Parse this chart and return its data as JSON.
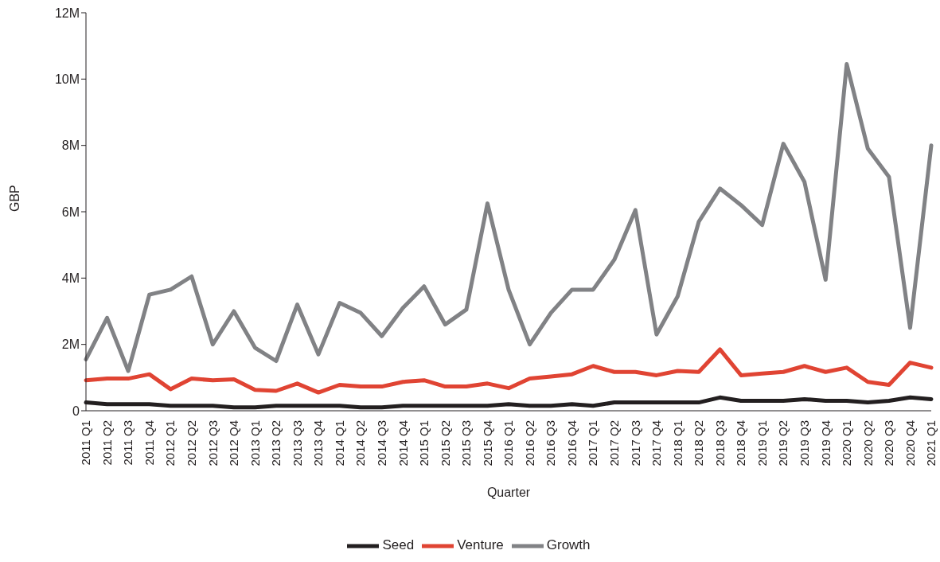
{
  "chart_data": {
    "type": "line",
    "xlabel": "Quarter",
    "ylabel": "GBP",
    "categories": [
      "2011 Q1",
      "2011 Q2",
      "2011 Q3",
      "2011 Q4",
      "2012 Q1",
      "2012 Q2",
      "2012 Q3",
      "2012 Q4",
      "2013 Q1",
      "2013 Q2",
      "2013 Q3",
      "2013 Q4",
      "2014 Q1",
      "2014 Q2",
      "2014 Q3",
      "2014 Q4",
      "2015 Q1",
      "2015 Q2",
      "2015 Q3",
      "2015 Q4",
      "2016 Q1",
      "2016 Q2",
      "2016 Q3",
      "2016 Q4",
      "2017 Q1",
      "2017 Q2",
      "2017 Q3",
      "2017 Q4",
      "2018 Q1",
      "2018 Q2",
      "2018 Q3",
      "2018 Q4",
      "2019 Q1",
      "2019 Q2",
      "2019 Q3",
      "2019 Q4",
      "2020 Q1",
      "2020 Q2",
      "2020 Q3",
      "2020 Q4",
      "2021 Q1"
    ],
    "series": [
      {
        "name": "Seed",
        "color": "#231f20",
        "values": [
          250000,
          200000,
          200000,
          200000,
          150000,
          150000,
          150000,
          100000,
          100000,
          150000,
          150000,
          150000,
          150000,
          100000,
          100000,
          150000,
          150000,
          150000,
          150000,
          150000,
          200000,
          150000,
          150000,
          200000,
          150000,
          250000,
          250000,
          250000,
          250000,
          250000,
          400000,
          300000,
          300000,
          300000,
          350000,
          300000,
          300000,
          250000,
          300000,
          400000,
          350000
        ]
      },
      {
        "name": "Venture",
        "color": "#e04433",
        "values": [
          920000,
          970000,
          970000,
          1100000,
          650000,
          970000,
          920000,
          950000,
          630000,
          600000,
          820000,
          550000,
          780000,
          730000,
          730000,
          870000,
          920000,
          730000,
          730000,
          820000,
          680000,
          970000,
          1030000,
          1100000,
          1350000,
          1170000,
          1170000,
          1070000,
          1200000,
          1170000,
          1850000,
          1070000,
          1120000,
          1170000,
          1350000,
          1170000,
          1300000,
          870000,
          780000,
          1450000,
          1300000
        ]
      },
      {
        "name": "Growth",
        "color": "#818285",
        "values": [
          1550000,
          2800000,
          1200000,
          3500000,
          3650000,
          4050000,
          2000000,
          3000000,
          1900000,
          1500000,
          3200000,
          1700000,
          3250000,
          2950000,
          2250000,
          3100000,
          3750000,
          2600000,
          3050000,
          6250000,
          3650000,
          2000000,
          2950000,
          3650000,
          3650000,
          4550000,
          6050000,
          2300000,
          3450000,
          5700000,
          6700000,
          6200000,
          5600000,
          8050000,
          6900000,
          3950000,
          10450000,
          7900000,
          7050000,
          2500000,
          8000000
        ]
      }
    ],
    "ylim": [
      0,
      12000000
    ],
    "yticks": [
      0,
      {
        "value": 2000000,
        "label": "2M"
      },
      {
        "value": 4000000,
        "label": "4M"
      },
      {
        "value": 6000000,
        "label": "6M"
      },
      {
        "value": 8000000,
        "label": "8M"
      },
      {
        "value": 10000000,
        "label": "10M"
      },
      {
        "value": 12000000,
        "label": "12M"
      }
    ],
    "grid": false,
    "legend": "bottom",
    "marker": "none",
    "line_style": "solid"
  }
}
